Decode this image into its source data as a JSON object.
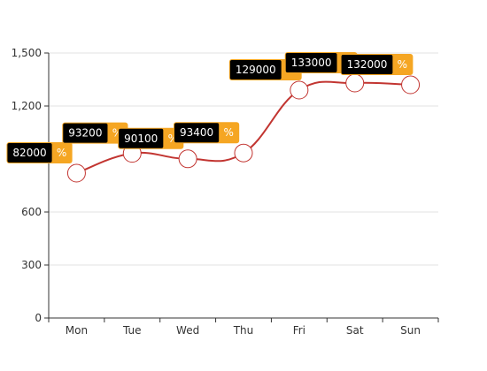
{
  "chart_data": {
    "type": "line",
    "categories": [
      "Mon",
      "Tue",
      "Wed",
      "Thu",
      "Fri",
      "Sat",
      "Sun"
    ],
    "values": [
      820,
      932,
      901,
      934,
      1290,
      1330,
      1320
    ],
    "data_labels": [
      "82000",
      "93200",
      "90100",
      "93400",
      "129000",
      "133000",
      "132000"
    ],
    "data_label_suffix": "%",
    "yticks": [
      0,
      300,
      600,
      1200,
      1500
    ],
    "ytick_labels": [
      "0",
      "300",
      "600",
      "1,200",
      "1,500"
    ],
    "ylim": [
      0,
      1500
    ],
    "title": "",
    "xlabel": "",
    "ylabel": "",
    "smooth": true,
    "grid": true,
    "colors": {
      "line": "#c23531",
      "marker_fill": "#ffffff",
      "grid": "#e0e0e0",
      "axis": "#333333",
      "tag_dark": "#000000",
      "tag_accent": "#f5a623",
      "tag_text": "#ffffff"
    }
  }
}
